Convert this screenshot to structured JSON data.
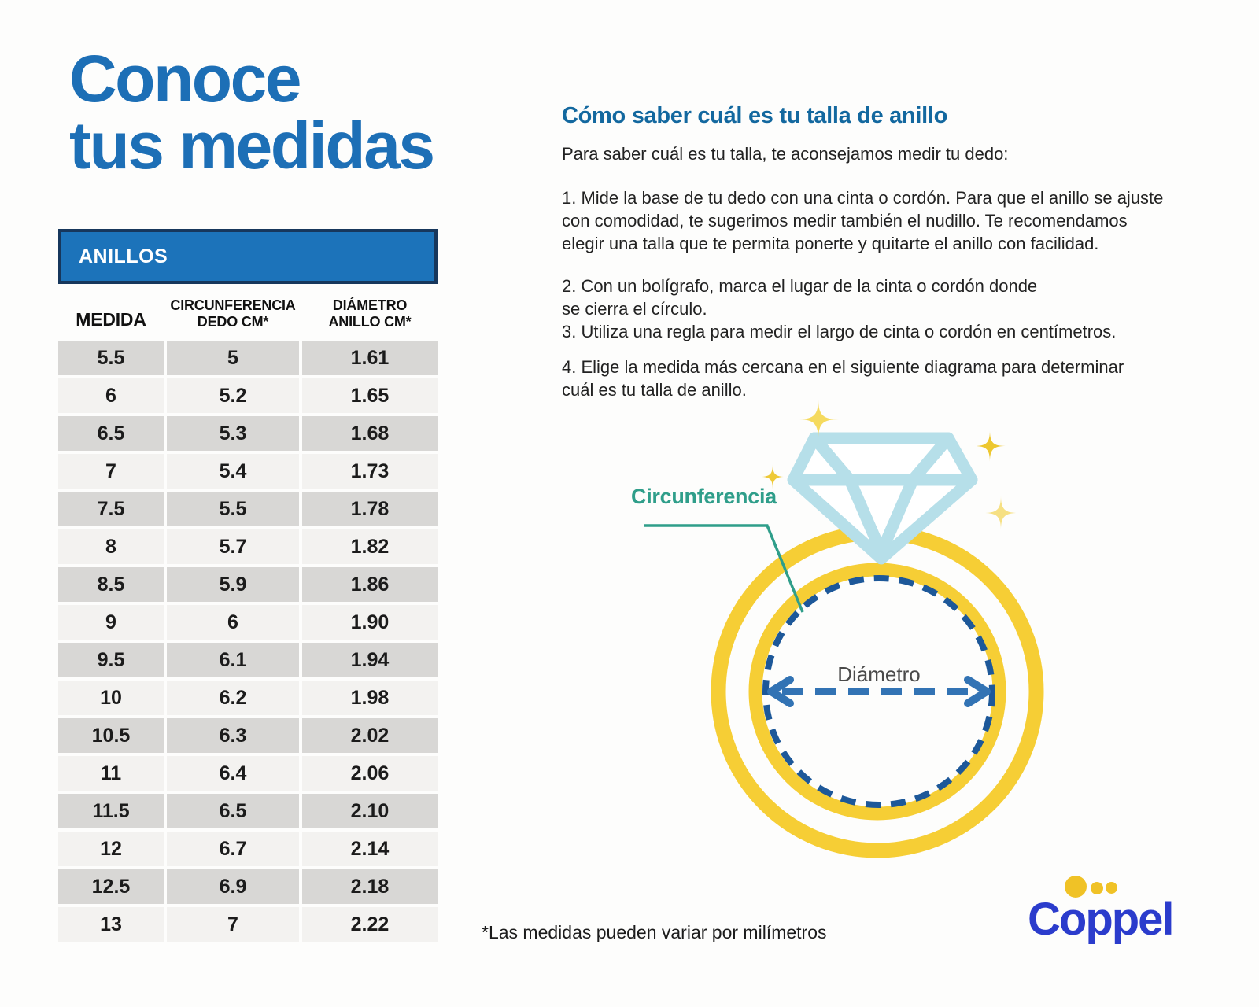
{
  "page": {
    "title_line1": "Conoce",
    "title_line2": "tus medidas",
    "footnote": "*Las medidas pueden variar por milímetros"
  },
  "table": {
    "header": "ANILLOS",
    "columns": [
      "MEDIDA",
      "CIRCUNFERENCIA\nDEDO CM*",
      "DIÁMETRO\nANILLO CM*"
    ],
    "rows": [
      [
        "5.5",
        "5",
        "1.61"
      ],
      [
        "6",
        "5.2",
        "1.65"
      ],
      [
        "6.5",
        "5.3",
        "1.68"
      ],
      [
        "7",
        "5.4",
        "1.73"
      ],
      [
        "7.5",
        "5.5",
        "1.78"
      ],
      [
        "8",
        "5.7",
        "1.82"
      ],
      [
        "8.5",
        "5.9",
        "1.86"
      ],
      [
        "9",
        "6",
        "1.90"
      ],
      [
        "9.5",
        "6.1",
        "1.94"
      ],
      [
        "10",
        "6.2",
        "1.98"
      ],
      [
        "10.5",
        "6.3",
        "2.02"
      ],
      [
        "11",
        "6.4",
        "2.06"
      ],
      [
        "11.5",
        "6.5",
        "2.10"
      ],
      [
        "12",
        "6.7",
        "2.14"
      ],
      [
        "12.5",
        "6.9",
        "2.18"
      ],
      [
        "13",
        "7",
        "2.22"
      ]
    ]
  },
  "instructions": {
    "heading": "Cómo saber cuál es tu talla de anillo",
    "intro": "Para saber cuál es tu talla, te aconsejamos medir tu dedo:",
    "steps": [
      "1. Mide la base de tu dedo con una cinta o cordón. Para que el anillo se ajuste\ncon comodidad, te sugerimos medir también el nudillo. Te recomendamos\nelegir una talla que te permita ponerte y quitarte el anillo con facilidad.",
      "2. Con un bolígrafo, marca el lugar de la cinta o cordón donde\nse cierra el círculo.",
      "3. Utiliza una regla para medir el largo de cinta o cordón en centímetros.",
      "4. Elige la medida más cercana en el siguiente diagrama para determinar\ncuál es tu talla de anillo."
    ]
  },
  "diagram": {
    "circumference_label": "Circunferencia",
    "diameter_label": "Diámetro"
  },
  "logo": {
    "text": "Coppel"
  },
  "colors": {
    "brand_blue": "#1d6fb6",
    "heading_blue": "#13689f",
    "table_header_bg": "#1c73ba",
    "table_header_border": "#17375c",
    "row_dark": "#d8d7d5",
    "row_light": "#f3f2f0",
    "ring_yellow": "#f6ce35",
    "diamond_blue": "#b6dfe9",
    "dashed_circle_blue": "#1d5899",
    "arrow_blue": "#3273b4",
    "teal": "#2f9e8a",
    "sparkle_yellow": "#f2cf3a",
    "logo_blue": "#2b3ccc",
    "logo_dot_yellow": "#f0c226"
  }
}
